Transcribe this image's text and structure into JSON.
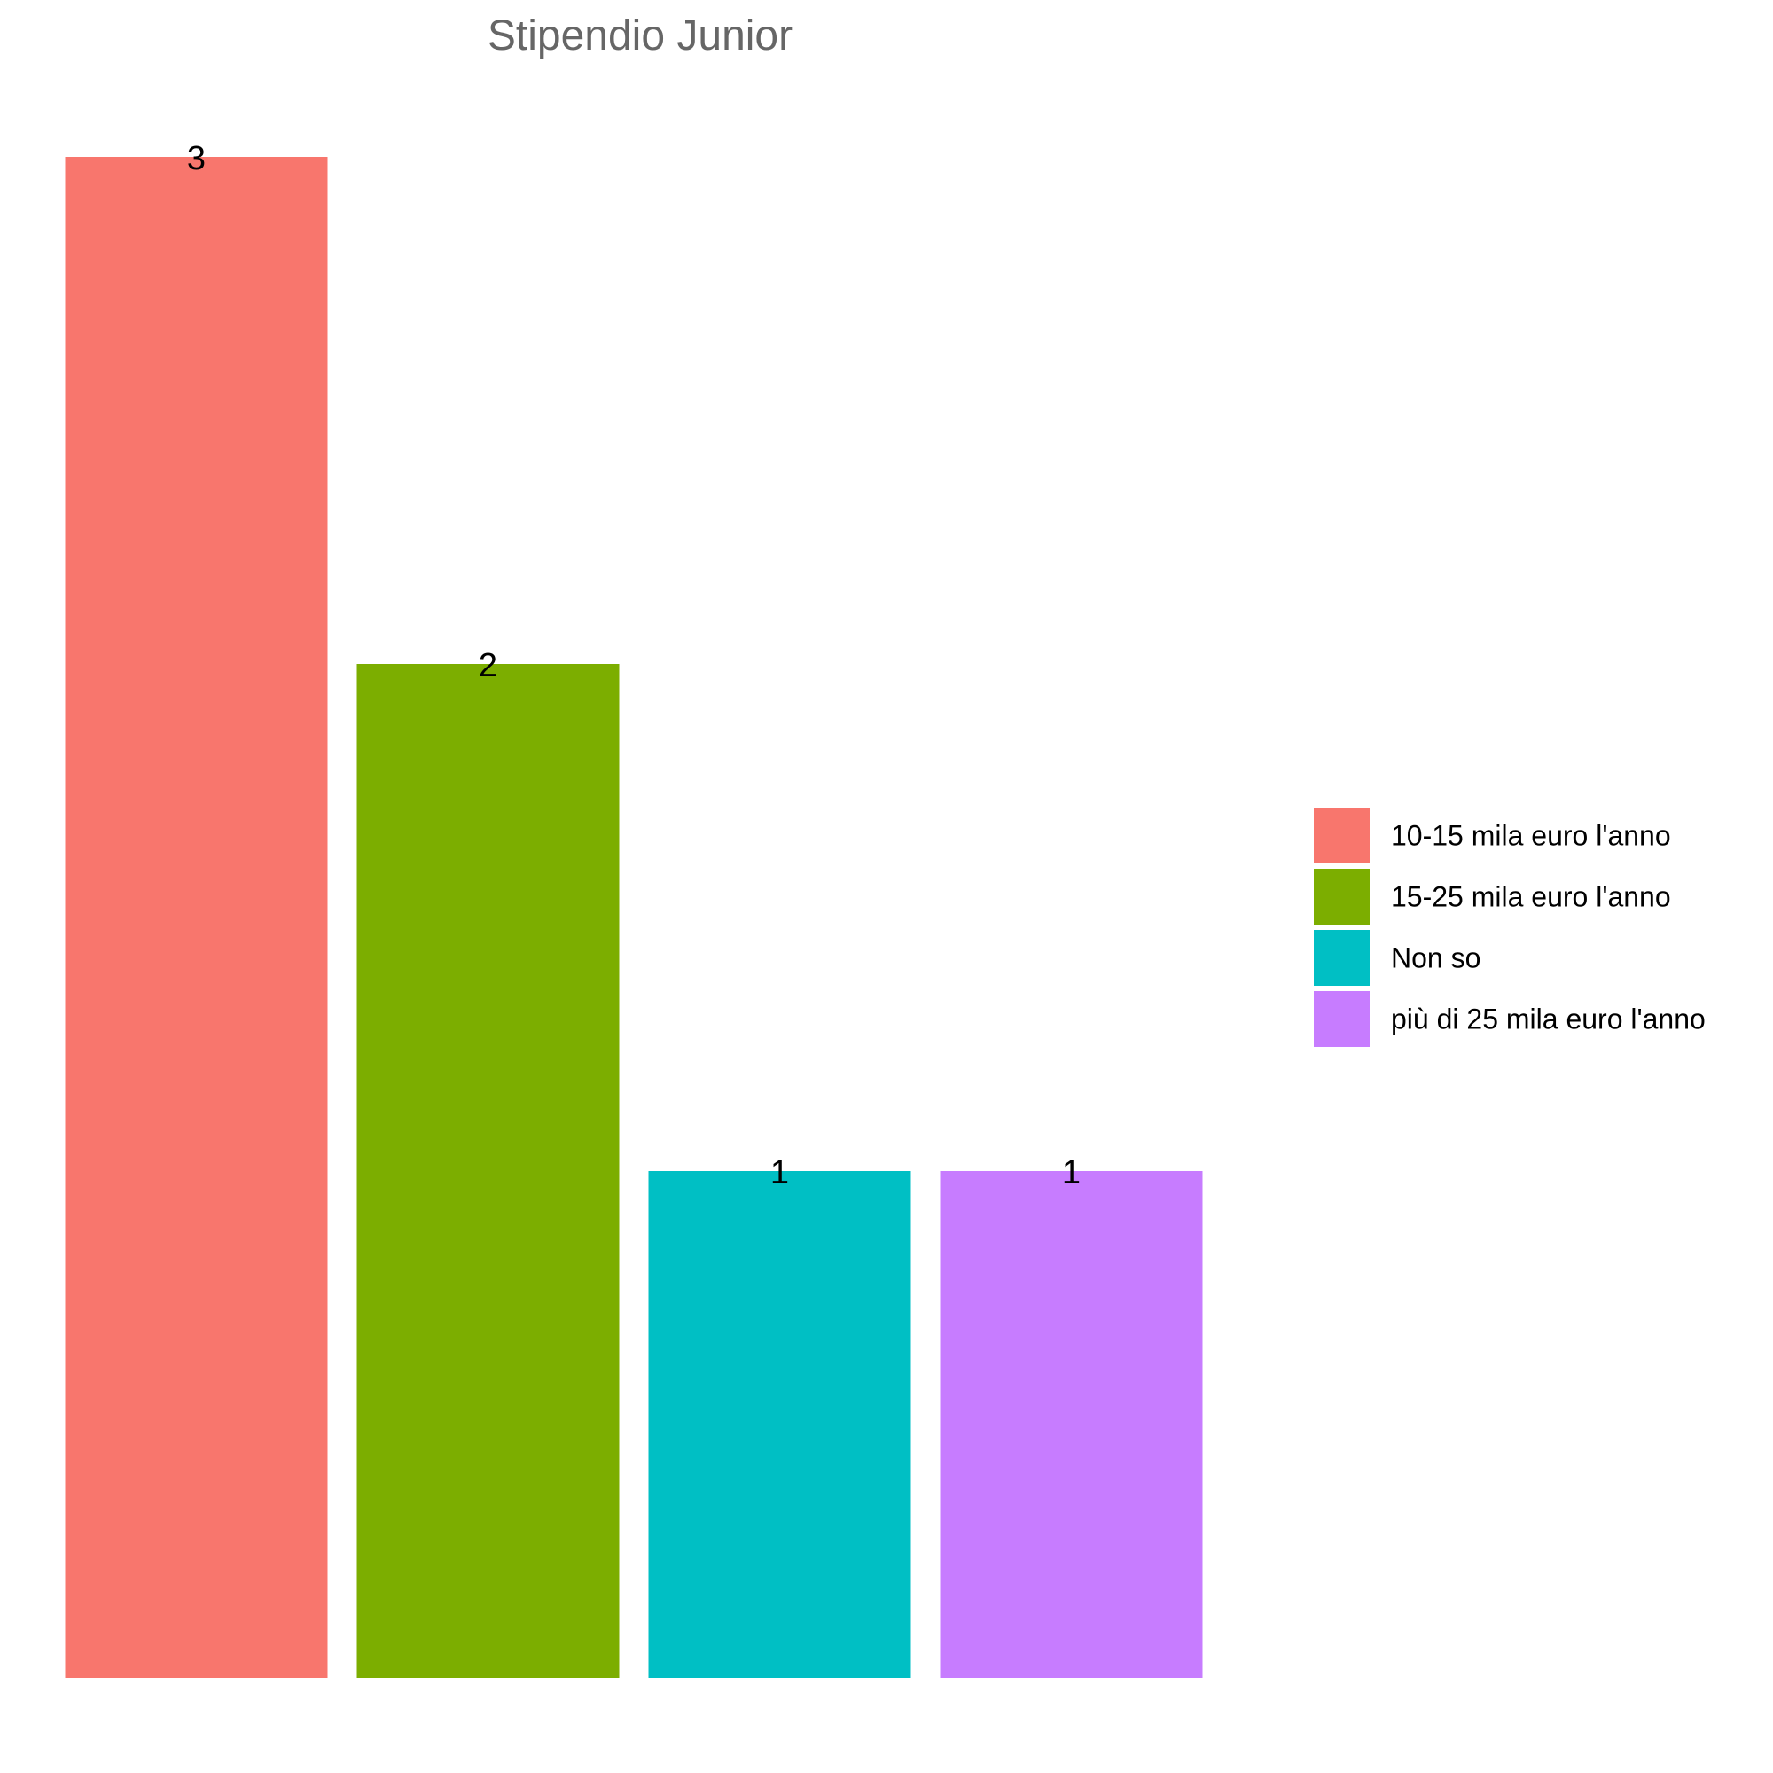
{
  "chart_data": {
    "type": "bar",
    "title": "Stipendio Junior",
    "xlabel": "",
    "ylabel": "",
    "categories": [
      "10-15 mila euro l'anno",
      "15-25 mila euro l'anno",
      "Non so",
      "più di 25 mila euro l'anno"
    ],
    "values": [
      3,
      2,
      1,
      1
    ],
    "data_labels": [
      "3",
      "2",
      "1",
      "1"
    ],
    "colors": [
      "#F8766D",
      "#7CAE00",
      "#00BFC4",
      "#C77CFF"
    ],
    "ylim": [
      0,
      3
    ],
    "grid": false,
    "axes_visible": false,
    "legend": {
      "position": "right",
      "entries": [
        "10-15 mila euro l'anno",
        "15-25 mila euro l'anno",
        "Non so",
        "più di 25 mila euro l'anno"
      ]
    }
  }
}
